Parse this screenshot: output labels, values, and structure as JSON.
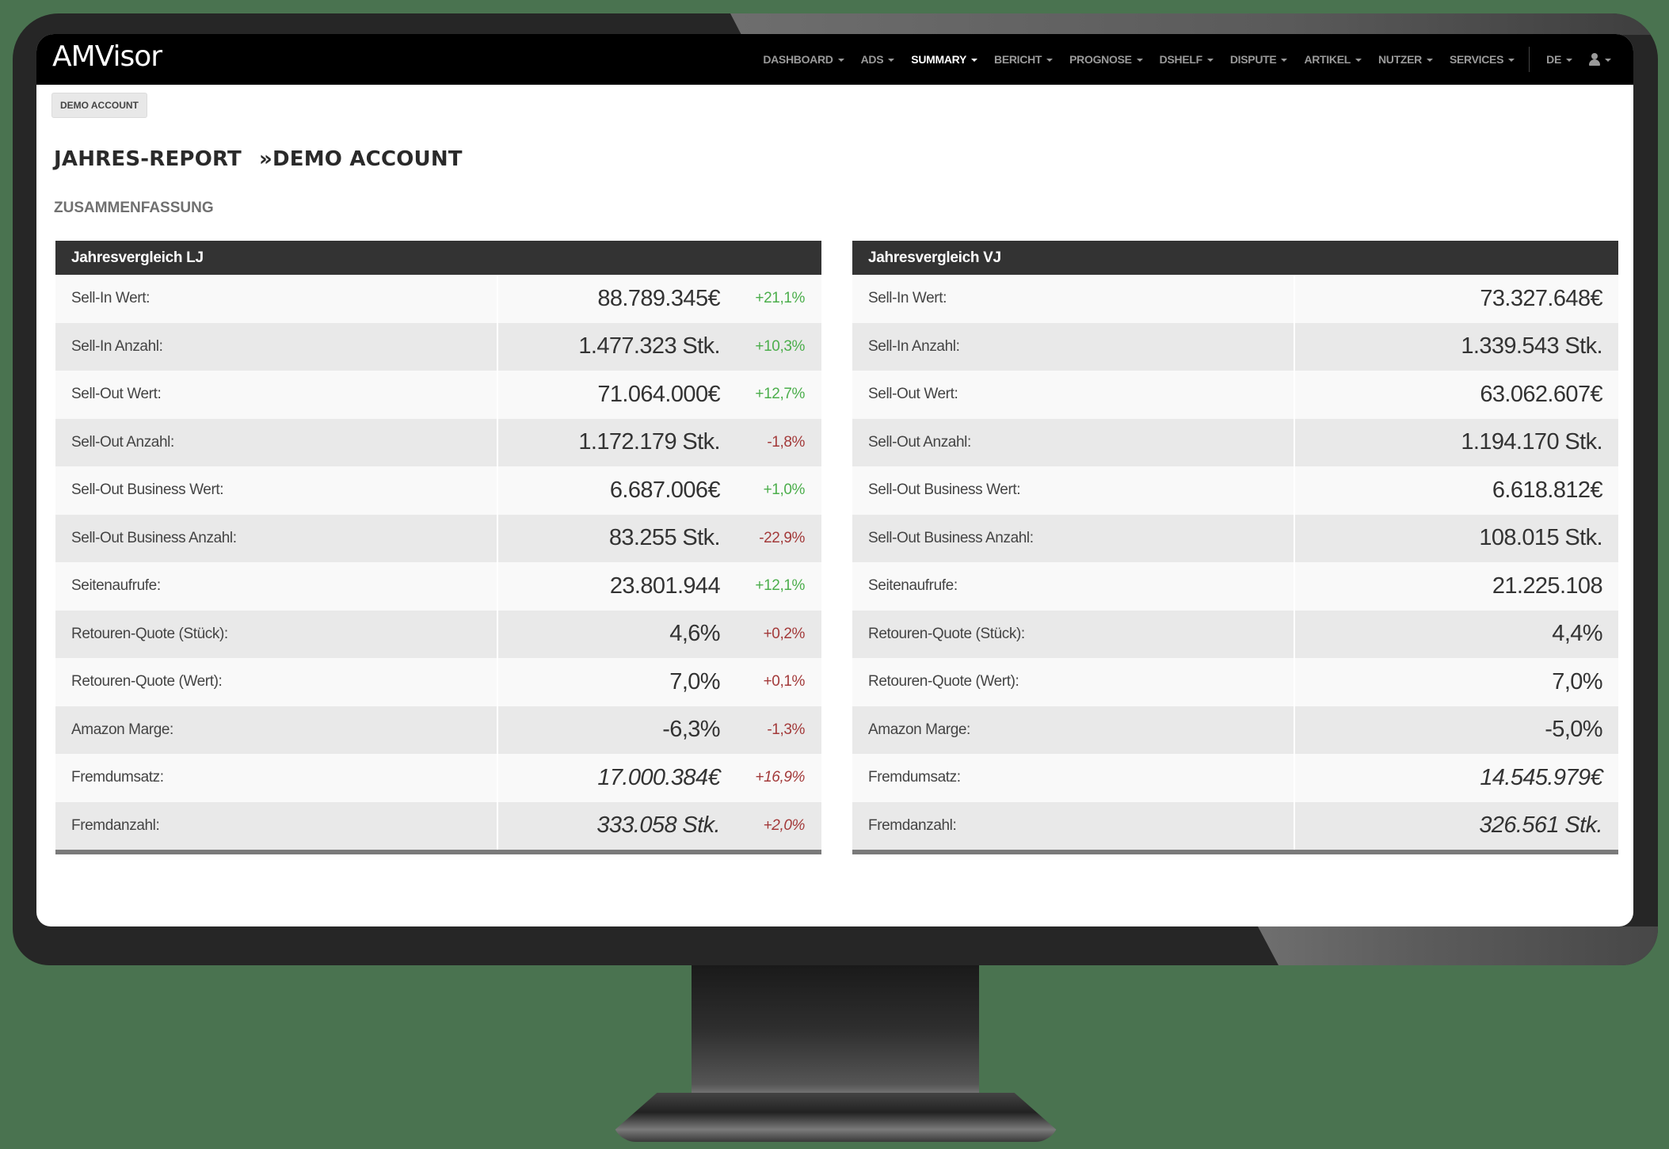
{
  "colors": {
    "background": "#4a7350",
    "navbar": "#000000",
    "panel_header": "#333333",
    "positive": "#4cae4c",
    "negative": "#a33a3a"
  },
  "navbar": {
    "logo": "AMVisor",
    "items": [
      {
        "label": "DASHBOARD",
        "active": false
      },
      {
        "label": "ADS",
        "active": false
      },
      {
        "label": "SUMMARY",
        "active": true
      },
      {
        "label": "BERICHT",
        "active": false
      },
      {
        "label": "PROGNOSE",
        "active": false
      },
      {
        "label": "DSHELF",
        "active": false
      },
      {
        "label": "DISPUTE",
        "active": false
      },
      {
        "label": "ARTIKEL",
        "active": false
      },
      {
        "label": "NUTZER",
        "active": false
      },
      {
        "label": "SERVICES",
        "active": false
      }
    ],
    "language": "DE",
    "user_icon": "user-icon"
  },
  "account_badge": "DEMO ACCOUNT",
  "page": {
    "title": "JAHRES-REPORT",
    "subtitle": "»DEMO ACCOUNT",
    "section": "ZUSAMMENFASSUNG"
  },
  "tables": {
    "lj": {
      "title": "Jahresvergleich LJ",
      "rows": [
        {
          "label": "Sell-In Wert:",
          "value": "88.789.345€",
          "change": "+21,1%",
          "trend": "positive",
          "italic": false
        },
        {
          "label": "Sell-In Anzahl:",
          "value": "1.477.323 Stk.",
          "change": "+10,3%",
          "trend": "positive",
          "italic": false
        },
        {
          "label": "Sell-Out Wert:",
          "value": "71.064.000€",
          "change": "+12,7%",
          "trend": "positive",
          "italic": false
        },
        {
          "label": "Sell-Out Anzahl:",
          "value": "1.172.179 Stk.",
          "change": "-1,8%",
          "trend": "negative",
          "italic": false
        },
        {
          "label": "Sell-Out Business Wert:",
          "value": "6.687.006€",
          "change": "+1,0%",
          "trend": "positive",
          "italic": false
        },
        {
          "label": "Sell-Out Business Anzahl:",
          "value": "83.255 Stk.",
          "change": "-22,9%",
          "trend": "negative",
          "italic": false
        },
        {
          "label": "Seitenaufrufe:",
          "value": "23.801.944",
          "change": "+12,1%",
          "trend": "positive",
          "italic": false
        },
        {
          "label": "Retouren-Quote (Stück):",
          "value": "4,6%",
          "change": "+0,2%",
          "trend": "negative",
          "italic": false
        },
        {
          "label": "Retouren-Quote (Wert):",
          "value": "7,0%",
          "change": "+0,1%",
          "trend": "negative",
          "italic": false
        },
        {
          "label": "Amazon Marge:",
          "value": "-6,3%",
          "change": "-1,3%",
          "trend": "negative",
          "italic": false
        },
        {
          "label": "Fremdumsatz:",
          "value": "17.000.384€",
          "change": "+16,9%",
          "trend": "negative",
          "italic": true
        },
        {
          "label": "Fremdanzahl:",
          "value": "333.058 Stk.",
          "change": "+2,0%",
          "trend": "negative",
          "italic": true
        }
      ]
    },
    "vj": {
      "title": "Jahresvergleich VJ",
      "rows": [
        {
          "label": "Sell-In Wert:",
          "value": "73.327.648€",
          "italic": false
        },
        {
          "label": "Sell-In Anzahl:",
          "value": "1.339.543 Stk.",
          "italic": false
        },
        {
          "label": "Sell-Out Wert:",
          "value": "63.062.607€",
          "italic": false
        },
        {
          "label": "Sell-Out Anzahl:",
          "value": "1.194.170 Stk.",
          "italic": false
        },
        {
          "label": "Sell-Out Business Wert:",
          "value": "6.618.812€",
          "italic": false
        },
        {
          "label": "Sell-Out Business Anzahl:",
          "value": "108.015 Stk.",
          "italic": false
        },
        {
          "label": "Seitenaufrufe:",
          "value": "21.225.108",
          "italic": false
        },
        {
          "label": "Retouren-Quote (Stück):",
          "value": "4,4%",
          "italic": false
        },
        {
          "label": "Retouren-Quote (Wert):",
          "value": "7,0%",
          "italic": false
        },
        {
          "label": "Amazon Marge:",
          "value": "-5,0%",
          "italic": false
        },
        {
          "label": "Fremdumsatz:",
          "value": "14.545.979€",
          "italic": true
        },
        {
          "label": "Fremdanzahl:",
          "value": "326.561 Stk.",
          "italic": true
        }
      ]
    }
  }
}
